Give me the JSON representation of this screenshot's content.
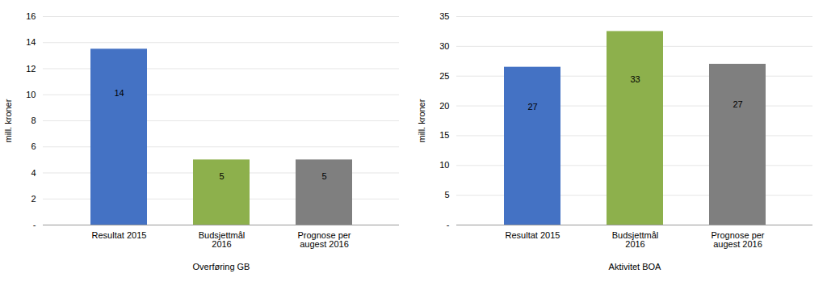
{
  "chart_data": [
    {
      "type": "bar",
      "categories": [
        "Resultat 2015",
        "Budsjettmål\n2016",
        "Prognose per\naugest 2016"
      ],
      "values": [
        13.5,
        5.0,
        5.0
      ],
      "value_labels": [
        "14",
        "5",
        "5"
      ],
      "data_labels": true,
      "colors": [
        "#4472C4",
        "#8DB04C",
        "#7F7F7F"
      ],
      "ylabel": "mill. kroner",
      "xlabel": "Overføring GB",
      "ylim": [
        0,
        16
      ],
      "yticks": [
        {
          "value": 0,
          "label": "-"
        },
        2,
        4,
        6,
        8,
        10,
        12,
        14,
        16
      ],
      "grid": true
    },
    {
      "type": "bar",
      "categories": [
        "Resultat 2015",
        "Budsjettmål\n2016",
        "Prognose per\naugest 2016"
      ],
      "values": [
        26.5,
        32.5,
        27.0
      ],
      "value_labels": [
        "27",
        "33",
        "27"
      ],
      "data_labels": true,
      "colors": [
        "#4472C4",
        "#8DB04C",
        "#7F7F7F"
      ],
      "ylabel": "mill. kroner",
      "xlabel": "Aktivitet BOA",
      "ylim": [
        0,
        35
      ],
      "yticks": [
        {
          "value": 0,
          "label": "-"
        },
        5,
        10,
        15,
        20,
        25,
        30,
        35
      ],
      "grid": true
    }
  ]
}
